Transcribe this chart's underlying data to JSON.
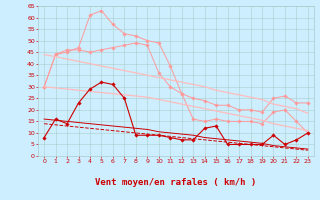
{
  "title": "",
  "xlabel": "Vent moyen/en rafales ( km/h )",
  "ylabel": "",
  "background_color": "#cceeff",
  "grid_color": "#aacccc",
  "x": [
    0,
    1,
    2,
    3,
    4,
    5,
    6,
    7,
    8,
    9,
    10,
    11,
    12,
    13,
    14,
    15,
    16,
    17,
    18,
    19,
    20,
    21,
    22,
    23
  ],
  "series": [
    {
      "name": "rafales_high",
      "color": "#ff9999",
      "linewidth": 0.7,
      "marker": "D",
      "markersize": 1.8,
      "values": [
        30,
        44,
        45,
        47,
        61,
        63,
        57,
        53,
        52,
        50,
        49,
        39,
        27,
        16,
        15,
        16,
        15,
        15,
        15,
        14,
        19,
        20,
        15,
        10
      ]
    },
    {
      "name": "moyen_high",
      "color": "#ff9999",
      "linewidth": 0.7,
      "marker": "D",
      "markersize": 1.8,
      "values": [
        30,
        44,
        46,
        46,
        45,
        46,
        47,
        48,
        49,
        48,
        36,
        30,
        27,
        25,
        24,
        22,
        22,
        20,
        20,
        19,
        25,
        26,
        23,
        23
      ]
    },
    {
      "name": "trend_upper1",
      "color": "#ffbbbb",
      "linewidth": 0.9,
      "marker": null,
      "values": [
        44,
        43.0,
        42.0,
        41.0,
        40.0,
        39.0,
        38.0,
        37.0,
        36.0,
        35.0,
        34.0,
        33.0,
        32.0,
        31.0,
        30.0,
        28.5,
        27.5,
        26.5,
        25.5,
        24.5,
        22.5,
        21.5,
        20.5,
        18.5
      ]
    },
    {
      "name": "trend_upper2",
      "color": "#ffbbbb",
      "linewidth": 0.9,
      "marker": null,
      "values": [
        30,
        29.5,
        29.0,
        28.5,
        28.0,
        27.5,
        27.0,
        26.5,
        26.0,
        25.5,
        24.5,
        23.5,
        22.5,
        21.5,
        20.5,
        19.5,
        18.5,
        17.5,
        16.5,
        15.5,
        14.0,
        13.0,
        12.0,
        11.0
      ]
    },
    {
      "name": "moyen_low",
      "color": "#cc0000",
      "linewidth": 0.8,
      "marker": "D",
      "markersize": 1.8,
      "values": [
        8,
        16,
        14,
        23,
        29,
        32,
        31,
        25,
        9,
        9,
        9,
        8,
        7,
        7,
        12,
        13,
        5,
        5,
        5,
        5,
        9,
        5,
        7,
        10
      ]
    },
    {
      "name": "trend_lower1",
      "color": "#cc0000",
      "linewidth": 0.7,
      "marker": null,
      "linestyle": "--",
      "values": [
        14,
        13.5,
        13.0,
        12.5,
        12.0,
        11.5,
        11.0,
        10.5,
        10.0,
        9.5,
        9.0,
        8.5,
        8.0,
        7.5,
        7.0,
        6.5,
        6.0,
        5.5,
        5.0,
        4.5,
        4.0,
        3.5,
        3.0,
        2.5
      ]
    },
    {
      "name": "trend_lower2",
      "color": "#cc0000",
      "linewidth": 0.7,
      "marker": null,
      "values": [
        16,
        15.5,
        15.0,
        14.5,
        14.0,
        13.5,
        13.0,
        12.5,
        12.0,
        11.5,
        10.5,
        10.0,
        9.5,
        9.0,
        8.0,
        7.5,
        7.0,
        6.5,
        6.0,
        5.5,
        4.5,
        4.0,
        3.5,
        3.0
      ]
    }
  ],
  "ylim": [
    0,
    65
  ],
  "yticks": [
    0,
    5,
    10,
    15,
    20,
    25,
    30,
    35,
    40,
    45,
    50,
    55,
    60,
    65
  ],
  "xticks": [
    0,
    1,
    2,
    3,
    4,
    5,
    6,
    7,
    8,
    9,
    10,
    11,
    12,
    13,
    14,
    15,
    16,
    17,
    18,
    19,
    20,
    21,
    22,
    23
  ],
  "tick_color": "#cc0000",
  "tick_fontsize": 4.5,
  "xlabel_fontsize": 6.5,
  "xlabel_color": "#cc0000",
  "wind_angles": [
    45,
    45,
    45,
    45,
    45,
    45,
    45,
    45,
    45,
    45,
    20,
    10,
    0,
    0,
    0,
    -10,
    -30,
    -45,
    -55,
    -60,
    -70,
    -80,
    -90,
    -90
  ]
}
